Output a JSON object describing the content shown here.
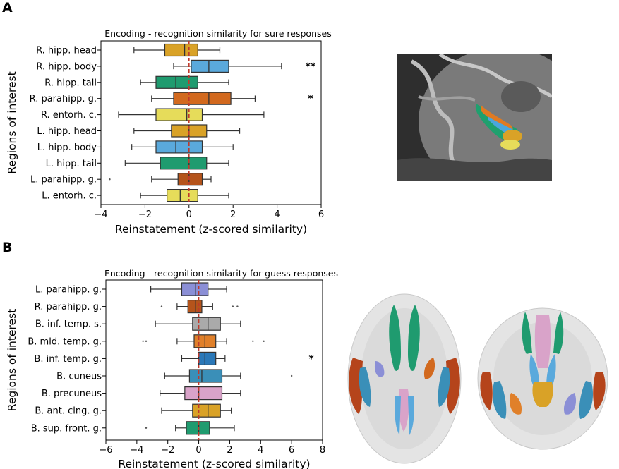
{
  "panels": {
    "a": "A",
    "b": "B"
  },
  "colors": {
    "gold": "#d9a227",
    "blue": "#5aa9dc",
    "green": "#1f9b6f",
    "orange": "#d2691e",
    "yellow": "#e6dc5a",
    "lavender": "#8b8fd6",
    "brown": "#b5541b",
    "grey": "#aaaaaa",
    "darkorange": "#e0802a",
    "darkblue": "#2a78b8",
    "teal": "#3a8fb8",
    "pink": "#d9a3c9",
    "median_line": "#c0392b"
  },
  "chart_data": [
    {
      "type": "boxplot",
      "orientation": "horizontal",
      "title": "Encoding - recognition similarity for sure responses",
      "xlabel": "Reinstatement (z-scored similarity)",
      "ylabel": "Regions of interest",
      "xlim": [
        -4,
        6
      ],
      "xticks": [
        "−4",
        "−2",
        "0",
        "2",
        "4",
        "6"
      ],
      "xtick_values": [
        -4,
        -2,
        0,
        2,
        4,
        6
      ],
      "reference_line": 0,
      "categories": [
        "R. hipp. head",
        "R. hipp. body",
        "R. hipp. tail",
        "R. parahipp. g.",
        "R. entorh. c.",
        "L. hipp. head",
        "L. hipp. body",
        "L. hipp. tail",
        "L. parahipp. g.",
        "L. entorh. c."
      ],
      "boxes": [
        {
          "whislo": -2.5,
          "q1": -1.1,
          "med": -0.2,
          "q3": 0.4,
          "whishi": 1.4,
          "fliers": [],
          "color": "#d9a227",
          "annotation": ""
        },
        {
          "whislo": -0.7,
          "q1": 0.1,
          "med": 0.9,
          "q3": 1.8,
          "whishi": 4.2,
          "fliers": [],
          "color": "#5aa9dc",
          "annotation": "**"
        },
        {
          "whislo": -2.2,
          "q1": -1.5,
          "med": -0.6,
          "q3": 0.4,
          "whishi": 1.8,
          "fliers": [],
          "color": "#1f9b6f",
          "annotation": ""
        },
        {
          "whislo": -1.7,
          "q1": -0.7,
          "med": 0.9,
          "q3": 1.9,
          "whishi": 3.0,
          "fliers": [],
          "color": "#d2691e",
          "annotation": "*"
        },
        {
          "whislo": -3.2,
          "q1": -1.5,
          "med": -0.1,
          "q3": 0.6,
          "whishi": 3.4,
          "fliers": [],
          "color": "#e6dc5a",
          "annotation": ""
        },
        {
          "whislo": -2.5,
          "q1": -0.8,
          "med": 0.0,
          "q3": 0.8,
          "whishi": 2.3,
          "fliers": [],
          "color": "#d9a227",
          "annotation": ""
        },
        {
          "whislo": -2.6,
          "q1": -1.5,
          "med": -0.6,
          "q3": 0.6,
          "whishi": 2.0,
          "fliers": [],
          "color": "#5aa9dc",
          "annotation": ""
        },
        {
          "whislo": -2.9,
          "q1": -1.3,
          "med": 0.0,
          "q3": 0.8,
          "whishi": 1.8,
          "fliers": [],
          "color": "#1f9b6f",
          "annotation": ""
        },
        {
          "whislo": -1.7,
          "q1": -0.5,
          "med": 0.0,
          "q3": 0.6,
          "whishi": 1.0,
          "fliers": [
            -3.6
          ],
          "color": "#b5541b",
          "annotation": ""
        },
        {
          "whislo": -2.2,
          "q1": -1.0,
          "med": -0.4,
          "q3": 0.4,
          "whishi": 1.8,
          "fliers": [],
          "color": "#e6dc5a",
          "annotation": ""
        }
      ]
    },
    {
      "type": "boxplot",
      "orientation": "horizontal",
      "title": "Encoding - recognition similarity for guess responses",
      "xlabel": "Reinstatement (z-scored similarity)",
      "ylabel": "Regions of interest",
      "xlim": [
        -6,
        8
      ],
      "xticks": [
        "−6",
        "−4",
        "−2",
        "0",
        "2",
        "4",
        "6",
        "8"
      ],
      "xtick_values": [
        -6,
        -4,
        -2,
        0,
        2,
        4,
        6,
        8
      ],
      "reference_line": 0,
      "categories": [
        "L. parahipp. g.",
        "R. parahipp. g.",
        "B. inf. temp. s.",
        "B. mid. temp. g.",
        "B. inf. temp. g.",
        "B. cuneus",
        "B. precuneus",
        "B. ant. cing. g.",
        "B. sup. front. g."
      ],
      "boxes": [
        {
          "whislo": -3.1,
          "q1": -1.1,
          "med": -0.2,
          "q3": 0.6,
          "whishi": 1.8,
          "fliers": [],
          "color": "#8b8fd6",
          "annotation": ""
        },
        {
          "whislo": -1.4,
          "q1": -0.7,
          "med": -0.2,
          "q3": 0.2,
          "whishi": 0.9,
          "fliers": [
            -2.4,
            2.2,
            2.5
          ],
          "color": "#b5541b",
          "annotation": ""
        },
        {
          "whislo": -2.8,
          "q1": -0.4,
          "med": 0.6,
          "q3": 1.4,
          "whishi": 2.7,
          "fliers": [],
          "color": "#aaaaaa",
          "annotation": ""
        },
        {
          "whislo": -1.4,
          "q1": -0.3,
          "med": 0.4,
          "q3": 1.1,
          "whishi": 1.8,
          "fliers": [
            -3.6,
            -3.4,
            3.5,
            4.2
          ],
          "color": "#e0802a",
          "annotation": ""
        },
        {
          "whislo": -1.1,
          "q1": 0.0,
          "med": 0.4,
          "q3": 1.1,
          "whishi": 1.7,
          "fliers": [],
          "color": "#2a78b8",
          "annotation": "*"
        },
        {
          "whislo": -2.2,
          "q1": -0.6,
          "med": 0.2,
          "q3": 1.5,
          "whishi": 2.7,
          "fliers": [
            6.0
          ],
          "color": "#3a8fb8",
          "annotation": ""
        },
        {
          "whislo": -2.5,
          "q1": -0.9,
          "med": 0.0,
          "q3": 1.5,
          "whishi": 2.7,
          "fliers": [],
          "color": "#d9a3c9",
          "annotation": ""
        },
        {
          "whislo": -2.4,
          "q1": -0.4,
          "med": 0.6,
          "q3": 1.4,
          "whishi": 2.1,
          "fliers": [],
          "color": "#d9a227",
          "annotation": ""
        },
        {
          "whislo": -1.5,
          "q1": -0.8,
          "med": 0.0,
          "q3": 0.7,
          "whishi": 2.3,
          "fliers": [
            -3.4
          ],
          "color": "#1f9b6f",
          "annotation": ""
        }
      ]
    }
  ]
}
